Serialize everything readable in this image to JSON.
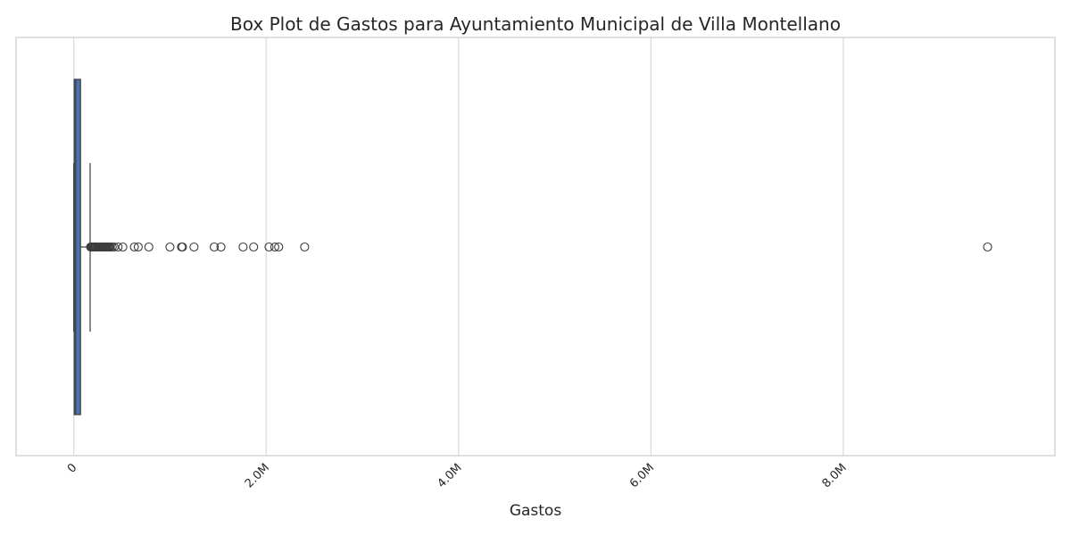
{
  "chart_data": {
    "type": "box",
    "orientation": "horizontal",
    "title": "Box Plot de Gastos para Ayuntamiento Municipal de Villa Montellano",
    "xlabel": "Gastos",
    "ylabel": "",
    "xlim": [
      -600000,
      10200000
    ],
    "x_ticks": [
      {
        "value": 0,
        "label": "0"
      },
      {
        "value": 2000000,
        "label": "2.0M"
      },
      {
        "value": 4000000,
        "label": "4.0M"
      },
      {
        "value": 6000000,
        "label": "6.0M"
      },
      {
        "value": 8000000,
        "label": "8.0M"
      }
    ],
    "tick_label_rotation_deg": -45,
    "grid": "vertical",
    "box": {
      "whisker_low": 0,
      "q1": 5000,
      "median": 20000,
      "q3": 70000,
      "whisker_high": 170000,
      "color": "#4c72b0",
      "edge_color": "#3d3d3d"
    },
    "outliers": [
      175000,
      180000,
      185000,
      190000,
      195000,
      200000,
      205000,
      210000,
      215000,
      220000,
      225000,
      230000,
      240000,
      250000,
      260000,
      270000,
      280000,
      290000,
      300000,
      310000,
      320000,
      330000,
      340000,
      350000,
      360000,
      370000,
      380000,
      400000,
      420000,
      460000,
      510000,
      630000,
      670000,
      780000,
      1000000,
      1120000,
      1130000,
      1250000,
      1460000,
      1530000,
      1760000,
      1870000,
      2030000,
      2090000,
      2130000,
      2400000,
      9500000
    ],
    "colors": {
      "grid": "#d9d9d9",
      "spine": "#cccccc",
      "outlier_edge": "#3d3d3d"
    }
  }
}
